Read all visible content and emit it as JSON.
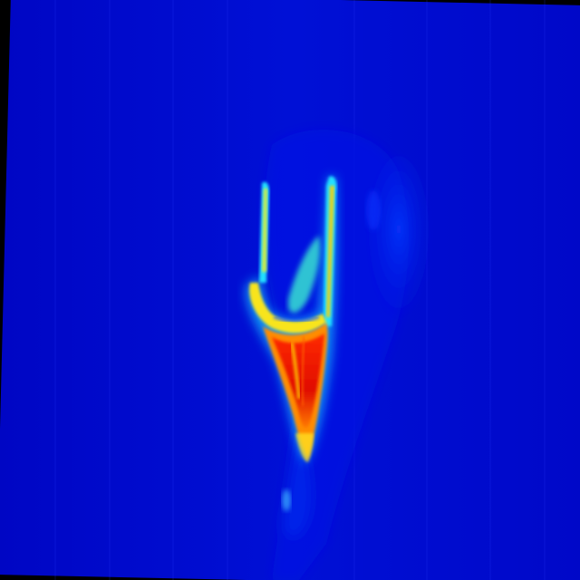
{
  "image": {
    "colormap": "jet",
    "colors": {
      "background": "#0008c8",
      "deep_blue": "#0004a8",
      "cyan": "#18e6f0",
      "yellow": "#f6f020",
      "orange": "#ff8a00",
      "red": "#ee1200",
      "border": "#000000"
    }
  }
}
